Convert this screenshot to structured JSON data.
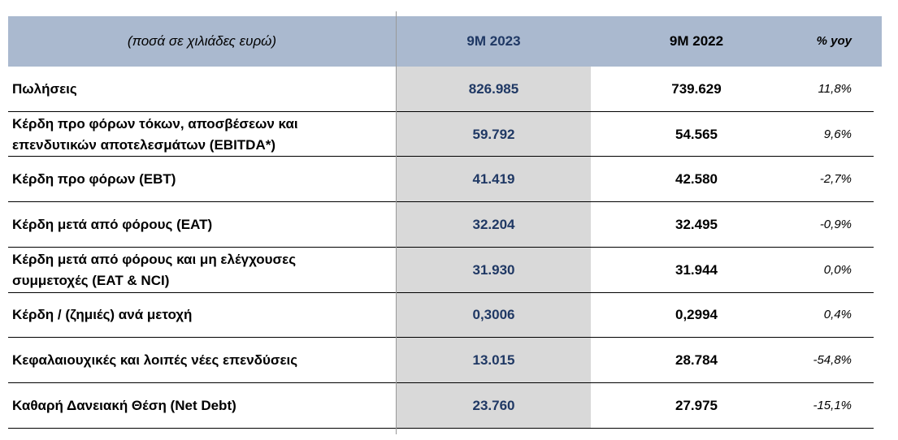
{
  "table": {
    "header": [
      "(ποσά σε χιλιάδες ευρώ)",
      "9M 2023",
      "9M 2022",
      "% yoy"
    ],
    "rows": [
      [
        "Πωλήσεις",
        "826.985",
        "739.629",
        "11,8%"
      ],
      [
        "Κέρδη προ φόρων τόκων, αποσβέσεων και επενδυτικών αποτελεσμάτων (EBITDA*)",
        "59.792",
        "54.565",
        "9,6%"
      ],
      [
        "Κέρδη προ φόρων (EBT)",
        "41.419",
        "42.580",
        "-2,7%"
      ],
      [
        "Κέρδη μετά από φόρους (EAT)",
        "32.204",
        "32.495",
        "-0,9%"
      ],
      [
        "Κέρδη μετά από φόρους και μη ελέγχουσες συμμετοχές (EAT & NCI)",
        "31.930",
        "31.944",
        "0,0%"
      ],
      [
        "Κέρδη / (ζημιές) ανά μετοχή",
        "0,3006",
        "0,2994",
        "0,4%"
      ],
      [
        "Κεφαλαιουχικές και λοιπές νέες επενδύσεις",
        "13.015",
        "28.784",
        "-54,8%"
      ],
      [
        "Καθαρή Δανειακή Θέση (Net Debt)",
        "23.760",
        "27.975",
        "-15,1%"
      ]
    ]
  }
}
